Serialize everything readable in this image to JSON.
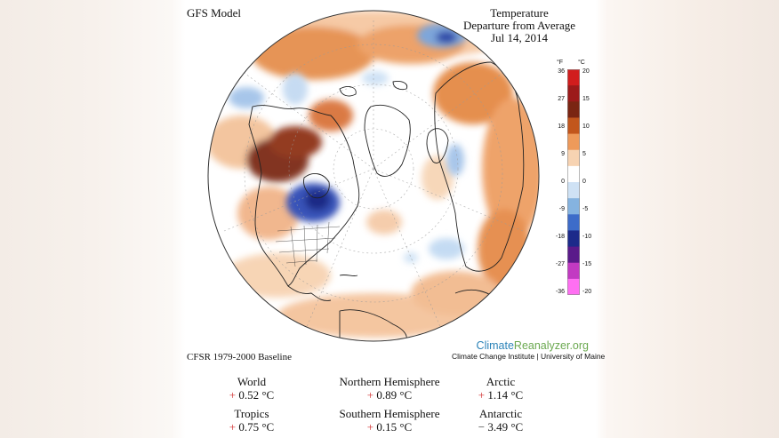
{
  "header": {
    "model": "GFS Model",
    "title_lines": [
      "Temperature",
      "Departure from Average",
      "Jul 14, 2014"
    ]
  },
  "baseline": "CFSR 1979-2000 Baseline",
  "branding": {
    "site_part1": "Climate",
    "site_part2": "Reanalyzer.org",
    "institution": "Climate Change Institute | University of Maine",
    "site_color": "#2b83b8",
    "org_color": "#6aa84f"
  },
  "scale": {
    "unit_f": "°F",
    "unit_c": "°C",
    "ticks_f": [
      "36",
      "27",
      "18",
      "9",
      "0",
      "-9",
      "-18",
      "-27",
      "-36"
    ],
    "ticks_c": [
      "20",
      "15",
      "10",
      "5",
      "0",
      "-5",
      "-10",
      "-15",
      "-20"
    ],
    "colors": [
      "#d11d1d",
      "#9c1a1a",
      "#7a2512",
      "#c2561c",
      "#ee9a5a",
      "#f7d3b2",
      "#ffffff",
      "#cfe2f5",
      "#85b3e0",
      "#3d6cc9",
      "#1c2a8a",
      "#5a1a8a",
      "#c23ac2",
      "#ff6ff2"
    ]
  },
  "stats": [
    {
      "name": "World",
      "sign": "+",
      "value": "0.52 °C"
    },
    {
      "name": "Northern Hemisphere",
      "sign": "+",
      "value": "0.89 °C"
    },
    {
      "name": "Arctic",
      "sign": "+",
      "value": "1.14 °C"
    },
    {
      "name": "Tropics",
      "sign": "+",
      "value": "0.75 °C"
    },
    {
      "name": "Southern Hemisphere",
      "sign": "+",
      "value": "0.15 °C"
    },
    {
      "name": "Antarctic",
      "sign": "−",
      "value": "3.49 °C"
    }
  ]
}
